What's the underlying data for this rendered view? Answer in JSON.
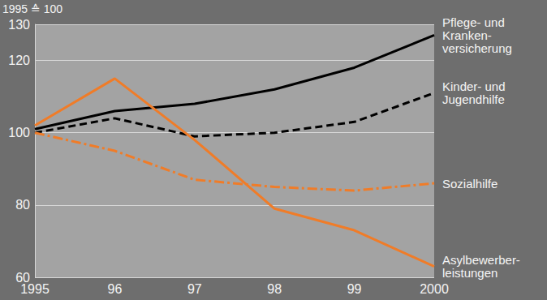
{
  "chart_data": {
    "type": "line",
    "ylabel": "1995 ≙ 100",
    "categories": [
      "1995",
      "96",
      "97",
      "98",
      "99",
      "2000"
    ],
    "series": [
      {
        "name": "Pflege- und\nKranken-\nversicherung",
        "color": "#000000",
        "line_style": "solid",
        "values": [
          101,
          106,
          108,
          112,
          118,
          127
        ]
      },
      {
        "name": "Kinder- und\nJugendhilfe",
        "color": "#000000",
        "line_style": "dashed",
        "values": [
          100,
          104,
          99,
          100,
          103,
          111
        ]
      },
      {
        "name": "Sozialhilfe",
        "color": "#f07c28",
        "line_style": "dashdot",
        "values": [
          100,
          95,
          87,
          85,
          84,
          86
        ]
      },
      {
        "name": "Asylbewerber-\nleistungen",
        "color": "#f07c28",
        "line_style": "solid",
        "values": [
          102,
          115,
          98,
          79,
          73,
          63
        ]
      }
    ],
    "ylim": [
      60,
      130
    ],
    "yticks": [
      60,
      80,
      100,
      120,
      130
    ],
    "grid": true
  }
}
